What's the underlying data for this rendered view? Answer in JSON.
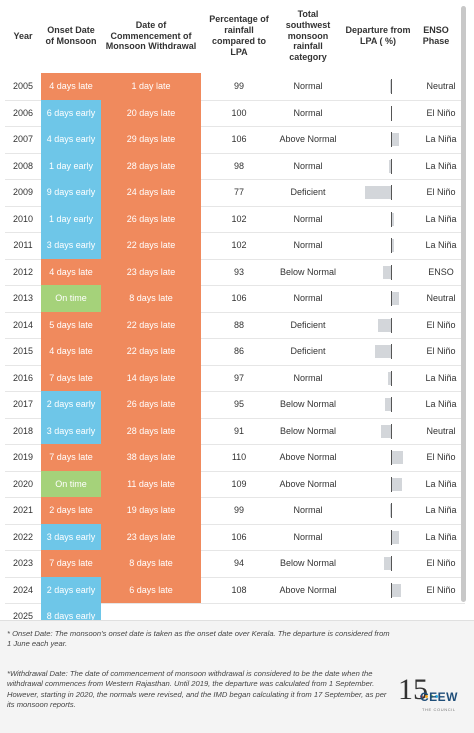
{
  "chart_data": {
    "type": "table",
    "columns": [
      "Year",
      "Onset Date of Monsoon",
      "Date of Commencement of Monsoon Withdrawal",
      "Percentage of rainfall compared to LPA",
      "Total southwest monsoon rainfall category",
      "Departure from LPA ( %)",
      "ENSO Phase"
    ],
    "rows": [
      {
        "year": "2005",
        "onset": "4 days late",
        "onset_type": "late",
        "withdrawal": "1 day late",
        "pct": "99",
        "category": "Normal",
        "departure": -1,
        "enso": "Neutral"
      },
      {
        "year": "2006",
        "onset": "6 days early",
        "onset_type": "early",
        "withdrawal": "20 days late",
        "pct": "100",
        "category": "Normal",
        "departure": 0,
        "enso": "El Niño"
      },
      {
        "year": "2007",
        "onset": "4 days early",
        "onset_type": "early",
        "withdrawal": "29 days late",
        "pct": "106",
        "category": "Above Normal",
        "departure": 6,
        "enso": "La Niña"
      },
      {
        "year": "2008",
        "onset": "1 day early",
        "onset_type": "early",
        "withdrawal": "28 days late",
        "pct": "98",
        "category": "Normal",
        "departure": -2,
        "enso": "La Niña"
      },
      {
        "year": "2009",
        "onset": "9 days early",
        "onset_type": "early",
        "withdrawal": "24 days late",
        "pct": "77",
        "category": "Deficient",
        "departure": -23,
        "enso": "El Niño"
      },
      {
        "year": "2010",
        "onset": "1 day early",
        "onset_type": "early",
        "withdrawal": "26 days late",
        "pct": "102",
        "category": "Normal",
        "departure": 2,
        "enso": "La Niña"
      },
      {
        "year": "2011",
        "onset": "3 days early",
        "onset_type": "early",
        "withdrawal": "22 days late",
        "pct": "102",
        "category": "Normal",
        "departure": 2,
        "enso": "La Niña"
      },
      {
        "year": "2012",
        "onset": "4 days late",
        "onset_type": "late",
        "withdrawal": "23 days late",
        "pct": "93",
        "category": "Below Normal",
        "departure": -7,
        "enso": "ENSO"
      },
      {
        "year": "2013",
        "onset": "On time",
        "onset_type": "ontime",
        "withdrawal": "8 days late",
        "pct": "106",
        "category": "Normal",
        "departure": 6,
        "enso": "Neutral"
      },
      {
        "year": "2014",
        "onset": "5 days late",
        "onset_type": "late",
        "withdrawal": "22 days late",
        "pct": "88",
        "category": "Deficient",
        "departure": -12,
        "enso": "El Niño"
      },
      {
        "year": "2015",
        "onset": "4 days late",
        "onset_type": "late",
        "withdrawal": "22 days late",
        "pct": "86",
        "category": "Deficient",
        "departure": -14,
        "enso": "El Niño"
      },
      {
        "year": "2016",
        "onset": "7 days late",
        "onset_type": "late",
        "withdrawal": "14 days late",
        "pct": "97",
        "category": "Normal",
        "departure": -3,
        "enso": "La Niña"
      },
      {
        "year": "2017",
        "onset": "2 days early",
        "onset_type": "early",
        "withdrawal": "26 days late",
        "pct": "95",
        "category": "Below Normal",
        "departure": -5,
        "enso": "La Niña"
      },
      {
        "year": "2018",
        "onset": "3 days early",
        "onset_type": "early",
        "withdrawal": "28 days late",
        "pct": "91",
        "category": "Below Normal",
        "departure": -9,
        "enso": "Neutral"
      },
      {
        "year": "2019",
        "onset": "7 days late",
        "onset_type": "late",
        "withdrawal": "38 days late",
        "pct": "110",
        "category": "Above Normal",
        "departure": 10,
        "enso": "El Niño"
      },
      {
        "year": "2020",
        "onset": "On time",
        "onset_type": "ontime",
        "withdrawal": "11 days late",
        "pct": "109",
        "category": "Above Normal",
        "departure": 9,
        "enso": "La Niña"
      },
      {
        "year": "2021",
        "onset": "2 days late",
        "onset_type": "late",
        "withdrawal": "19 days late",
        "pct": "99",
        "category": "Normal",
        "departure": -1,
        "enso": "La Niña"
      },
      {
        "year": "2022",
        "onset": "3 days early",
        "onset_type": "early",
        "withdrawal": "23 days late",
        "pct": "106",
        "category": "Normal",
        "departure": 6,
        "enso": "La Niña"
      },
      {
        "year": "2023",
        "onset": "7 days late",
        "onset_type": "late",
        "withdrawal": "8 days late",
        "pct": "94",
        "category": "Below Normal",
        "departure": -6,
        "enso": "El Niño"
      },
      {
        "year": "2024",
        "onset": "2 days early",
        "onset_type": "early",
        "withdrawal": "6 days late",
        "pct": "108",
        "category": "Above Normal",
        "departure": 8,
        "enso": "El Niño"
      },
      {
        "year": "2025",
        "onset": "8 days early",
        "onset_type": "early",
        "withdrawal": "",
        "pct": "",
        "category": "",
        "departure": null,
        "enso": ""
      }
    ],
    "departure_range": [
      -25,
      25
    ]
  },
  "colors": {
    "late": "#f08a5d",
    "early": "#6ec6e8",
    "ontime": "#a5d27a",
    "departure_bar": "#d3d6da"
  },
  "footer": {
    "note1": "* Onset Date: The monsoon's onset date is taken as the onset date over Kerala. The departure is considered from 1 June each year.",
    "note2": "*Withdrawal Date: The date of commencement of monsoon withdrawal is considered to be the date when the withdrawal commences from Western Rajasthan. Until 2019, the departure was calculated from 1 September. However, starting in 2020, the normals were revised, and the IMD began calculating it from 17 September, as per its monsoon reports.",
    "logo_number": "15",
    "logo_text": "CEEW",
    "logo_subtext": "THE COUNCIL"
  }
}
